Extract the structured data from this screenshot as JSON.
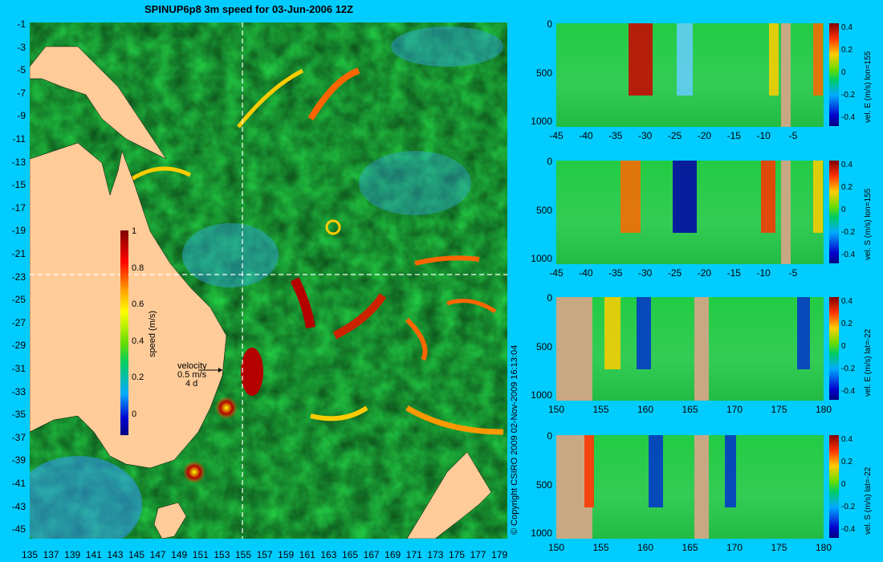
{
  "title": "SPINUP6p8 3m speed for 03-Jun-2006 12Z",
  "map": {
    "lat_ticks": [
      "-1",
      "-3",
      "-5",
      "-7",
      "-9",
      "-11",
      "-13",
      "-15",
      "-17",
      "-19",
      "-21",
      "-23",
      "-25",
      "-27",
      "-29",
      "-31",
      "-33",
      "-35",
      "-37",
      "-39",
      "-41",
      "-43",
      "-45"
    ],
    "lon_ticks": [
      "135",
      "137",
      "139",
      "141",
      "143",
      "145",
      "147",
      "149",
      "151",
      "153",
      "155",
      "157",
      "159",
      "161",
      "163",
      "165",
      "167",
      "169",
      "171",
      "173",
      "175",
      "177",
      "179"
    ],
    "colorbar": {
      "label": "speed (m/s)",
      "ticks": [
        "1",
        "0.8",
        "0.6",
        "0.4",
        "0.2",
        "0"
      ],
      "range": [
        -0.1,
        1
      ]
    },
    "velocity_legend": {
      "line1": "velocity",
      "line2": "0.5 m/s",
      "line3": "4 d"
    },
    "land_color": "#ffcc99",
    "crosshair": {
      "lon": 155,
      "lat": -22
    }
  },
  "copyright": "© Copyright CSIRO 2009   02-Nov-2009 16:13:04",
  "panels": [
    {
      "label": "vel. E (m/s) lon=155",
      "y_ticks": [
        "0",
        "500",
        "1000"
      ],
      "x_ticks": [
        "-45",
        "-40",
        "-35",
        "-30",
        "-25",
        "-20",
        "-15",
        "-10",
        "-5"
      ],
      "cbar_ticks": [
        "0.4",
        "0.2",
        "0",
        "-0.2",
        "-0.4"
      ]
    },
    {
      "label": "vel. S (m/s) lon=155",
      "y_ticks": [
        "0",
        "500",
        "1000"
      ],
      "x_ticks": [
        "-45",
        "-40",
        "-35",
        "-30",
        "-25",
        "-20",
        "-15",
        "-10",
        "-5"
      ],
      "cbar_ticks": [
        "0.4",
        "0.2",
        "0",
        "-0.2",
        "-0.4"
      ]
    },
    {
      "label": "vel. E (m/s) lat=-22",
      "y_ticks": [
        "0",
        "500",
        "1000"
      ],
      "x_ticks": [
        "150",
        "155",
        "160",
        "165",
        "170",
        "175",
        "180"
      ],
      "cbar_ticks": [
        "0.4",
        "0.2",
        "0",
        "-0.2",
        "-0.4"
      ]
    },
    {
      "label": "vel. S (m/s) lat=-22",
      "y_ticks": [
        "0",
        "500",
        "1000"
      ],
      "x_ticks": [
        "150",
        "155",
        "160",
        "165",
        "170",
        "175",
        "180"
      ],
      "cbar_ticks": [
        "0.4",
        "0.2",
        "0",
        "-0.2",
        "-0.4"
      ]
    }
  ],
  "colors": {
    "background": "#00ccff",
    "land": "#ffcc99",
    "bottom": "#c8a882"
  }
}
